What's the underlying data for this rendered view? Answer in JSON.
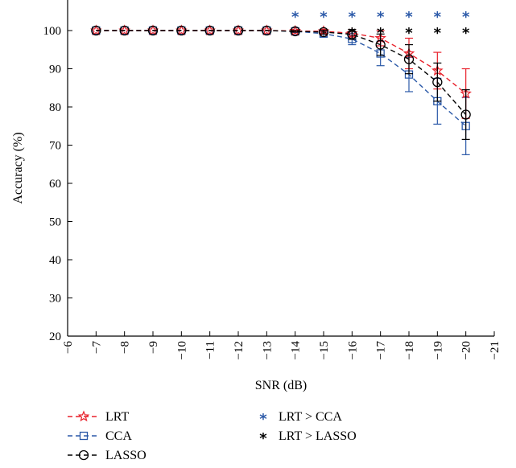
{
  "chart_data": {
    "type": "line",
    "title": "",
    "xlabel": "SNR (dB)",
    "ylabel": "Accuracy (%)",
    "x_ticks": [
      "−6",
      "−7",
      "−8",
      "−9",
      "−10",
      "−11",
      "−12",
      "−13",
      "−14",
      "−15",
      "−16",
      "−17",
      "−18",
      "−19",
      "−20",
      "−21"
    ],
    "y_ticks": [
      "20",
      "30",
      "40",
      "50",
      "60",
      "70",
      "80",
      "90",
      "100"
    ],
    "xlim": [
      -6,
      -21
    ],
    "ylim": [
      20,
      108
    ],
    "x": [
      -7,
      -8,
      -9,
      -10,
      -11,
      -12,
      -13,
      -14,
      -15,
      -16,
      -17,
      -18,
      -19,
      -20
    ],
    "series": [
      {
        "name": "LRT",
        "color": "#e8212b",
        "marker": "star",
        "line_style": "dashed",
        "values": [
          100,
          100,
          100,
          100,
          100,
          100,
          100,
          99.9,
          99.8,
          99.3,
          98,
          94,
          89.5,
          83.5
        ],
        "errors": [
          0,
          0,
          0,
          0,
          0,
          0,
          0,
          0.2,
          0.5,
          1.0,
          2.0,
          4.0,
          4.8,
          6.5
        ]
      },
      {
        "name": "CCA",
        "color": "#2b59a8",
        "marker": "square",
        "line_style": "dashed",
        "values": [
          100,
          100,
          100,
          100,
          100,
          100,
          100,
          99.8,
          99.2,
          97.8,
          94.0,
          88.5,
          81.5,
          75.0
        ],
        "errors": [
          0,
          0,
          0,
          0,
          0,
          0,
          0,
          0.3,
          0.8,
          1.5,
          3.2,
          4.5,
          6.0,
          7.5
        ]
      },
      {
        "name": "LASSO",
        "color": "#000000",
        "marker": "circle",
        "line_style": "dashed",
        "values": [
          100,
          100,
          100,
          100,
          100,
          100,
          100,
          99.8,
          99.6,
          99.0,
          96.3,
          92.5,
          86.5,
          78.0
        ],
        "errors": [
          0,
          0,
          0,
          0,
          0,
          0,
          0,
          0.2,
          0.5,
          1.3,
          2.8,
          3.8,
          5.0,
          6.5
        ]
      }
    ],
    "significance": [
      {
        "name": "LRT > CCA",
        "color": "#2b59a8",
        "symbol": "*",
        "x": [
          -14,
          -15,
          -16,
          -17,
          -18,
          -19,
          -20
        ]
      },
      {
        "name": "LRT > LASSO",
        "color": "#000000",
        "symbol": "*",
        "x": [
          -16,
          -17,
          -18,
          -19,
          -20
        ]
      }
    ],
    "grid": false,
    "legend_position": "bottom"
  }
}
